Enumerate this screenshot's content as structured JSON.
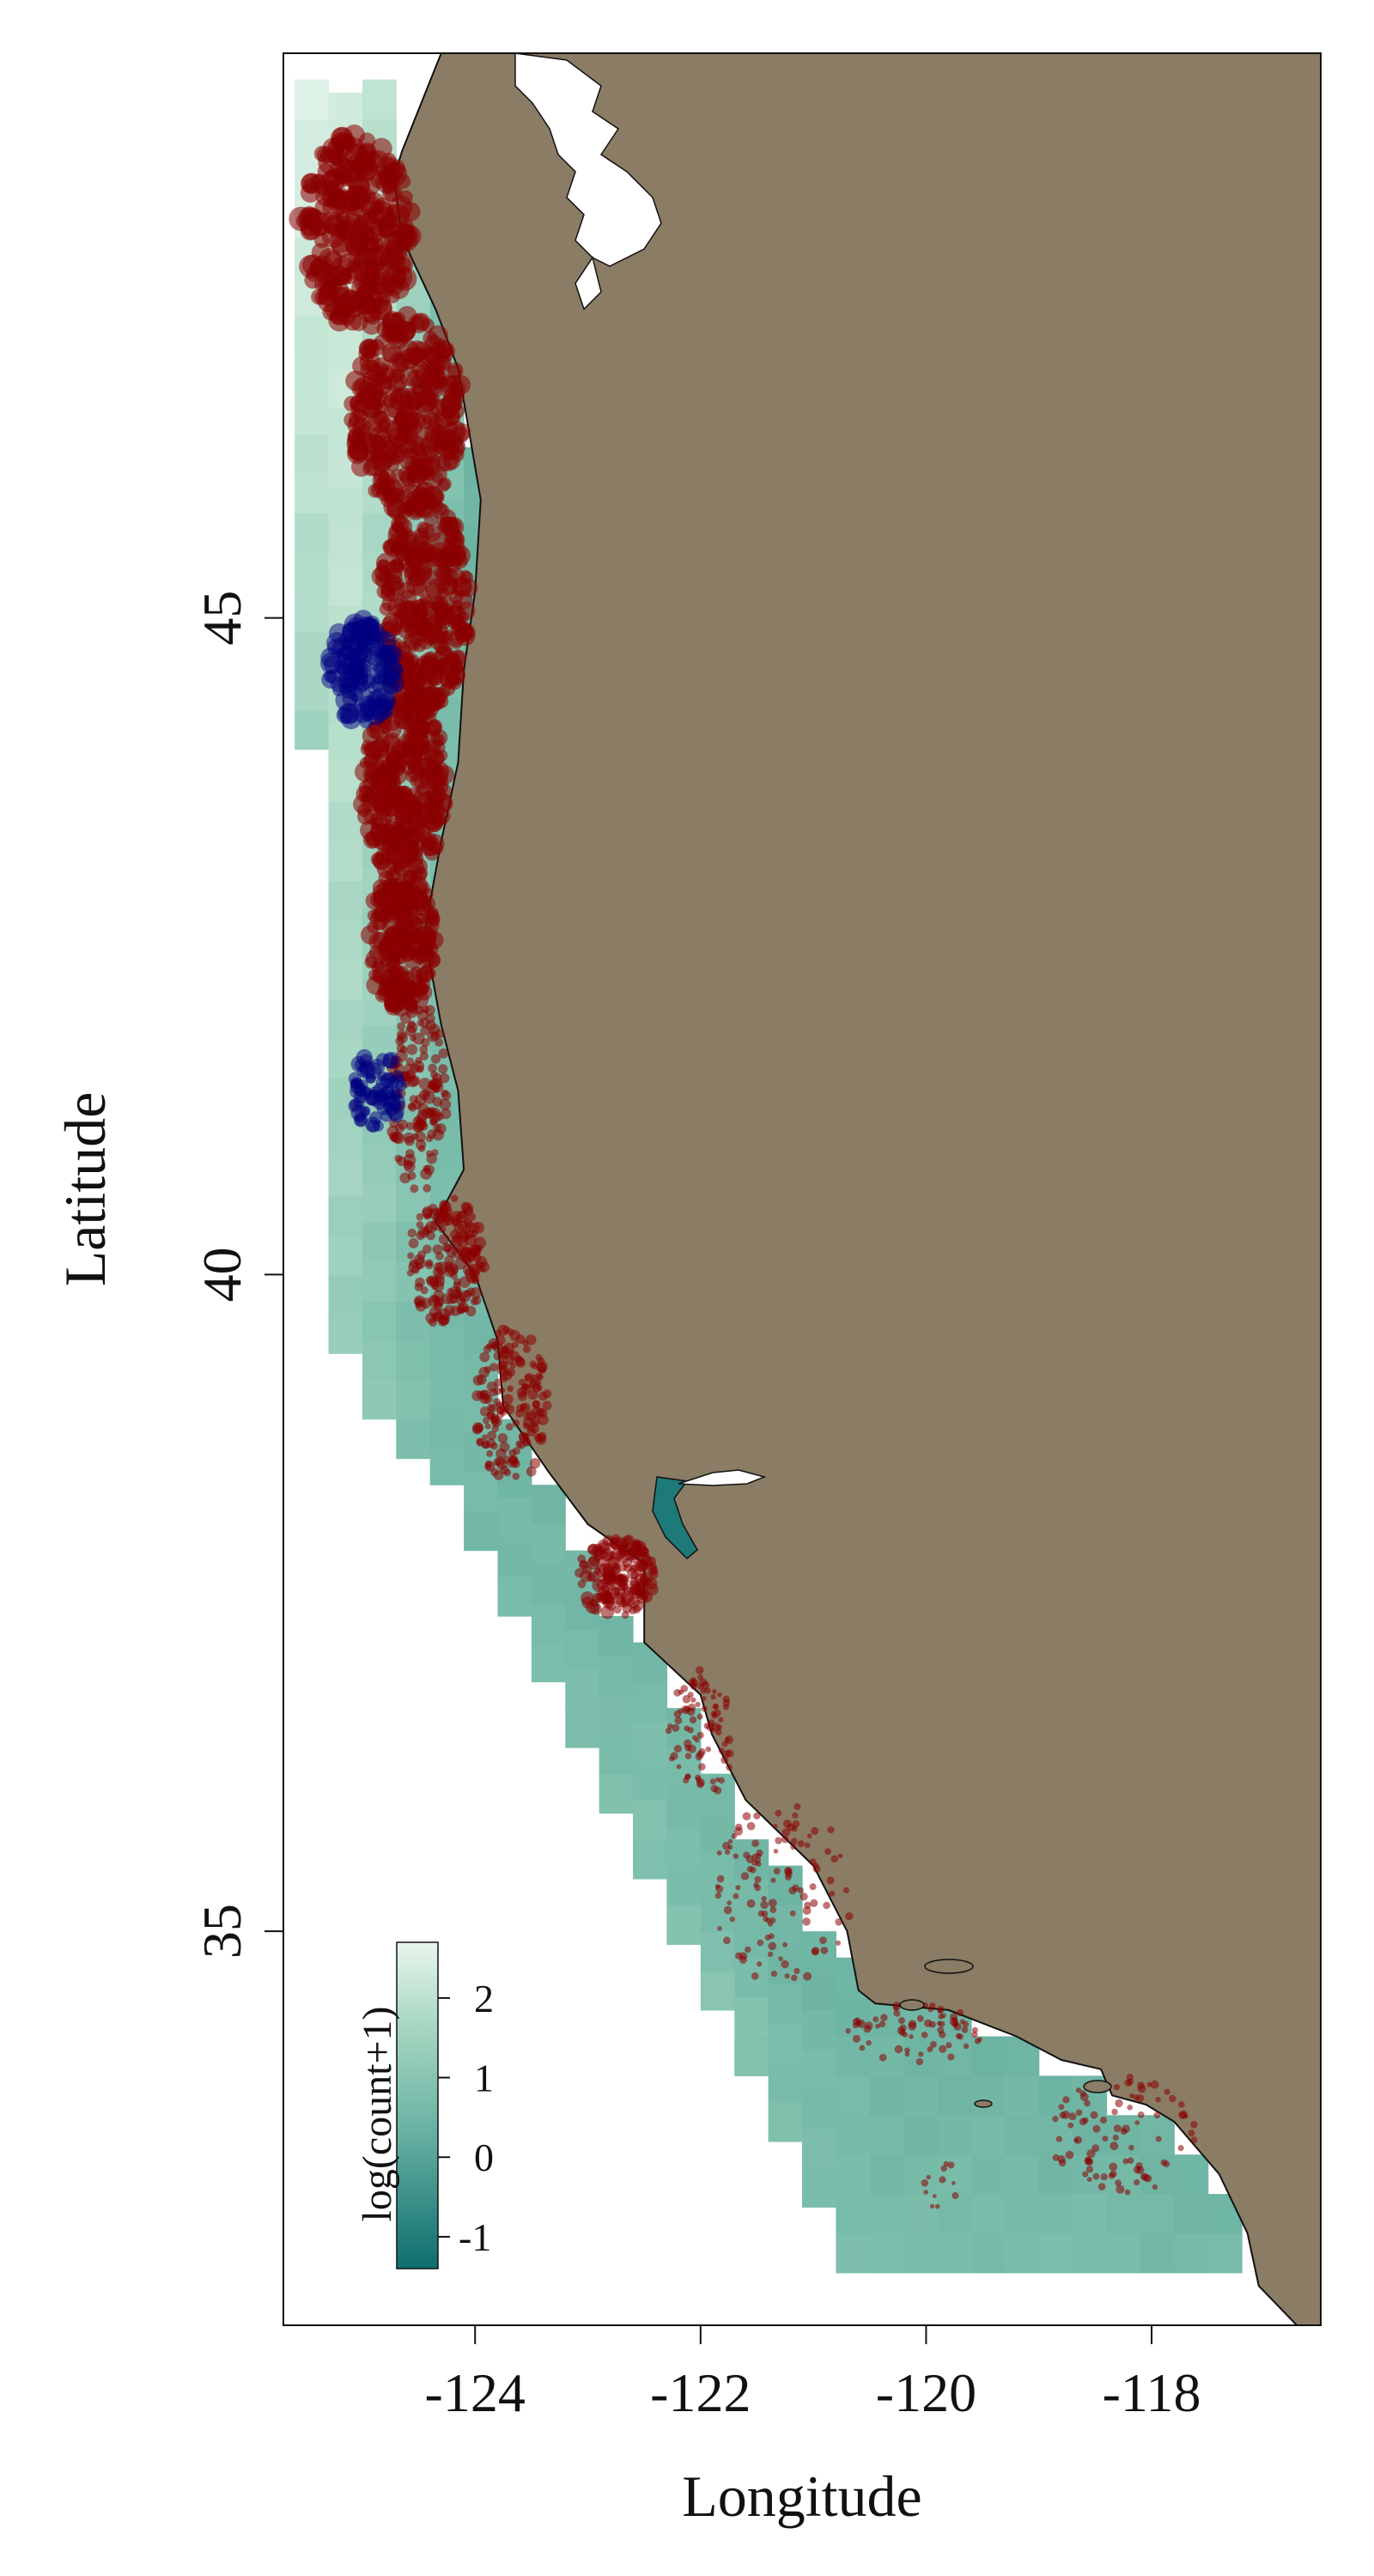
{
  "chart_data": {
    "type": "heatmap",
    "title": "",
    "xlabel": "Longitude",
    "ylabel": "Latitude",
    "xlim": [
      -125.7,
      -116.5
    ],
    "ylim": [
      32.0,
      49.3
    ],
    "x_ticks": [
      {
        "value": -124,
        "label": "-124"
      },
      {
        "value": -122,
        "label": "-122"
      },
      {
        "value": -120,
        "label": "-120"
      },
      {
        "value": -118,
        "label": "-118"
      }
    ],
    "y_ticks": [
      {
        "value": 45,
        "label": "45"
      },
      {
        "value": 40,
        "label": "40"
      },
      {
        "value": 35,
        "label": "35"
      }
    ],
    "legend": {
      "title": "log(count+1)",
      "range": [
        -1.4,
        2.7
      ],
      "ticks": [
        {
          "value": 2,
          "label": "2"
        },
        {
          "value": 1,
          "label": "1"
        },
        {
          "value": 0,
          "label": "0"
        },
        {
          "value": -1,
          "label": "-1"
        }
      ],
      "placement": "bottom-left"
    },
    "colors": {
      "land": "#8a7c65",
      "water": "#ffffff",
      "ramp_low": "#0d6e6e",
      "ramp_mid": "#7dbfac",
      "ramp_high": "#e8f5ec",
      "red_points": "#8b0000",
      "blue_points": "#00007f"
    },
    "grid_step_deg": 0.3,
    "columns": [
      {
        "lon": -125.45,
        "lat_min": 44.0,
        "lat_max": 49.1,
        "start": 1.6,
        "end": 2.5
      },
      {
        "lon": -125.15,
        "lat_min": 39.4,
        "lat_max": 49.1,
        "start": 1.4,
        "end": 2.4
      },
      {
        "lon": -124.85,
        "lat_min": 38.9,
        "lat_max": 49.1,
        "start": 1.2,
        "end": 2.0
      },
      {
        "lon": -124.55,
        "lat_min": 38.6,
        "lat_max": 48.6,
        "start": 1.0,
        "end": 1.5
      },
      {
        "lon": -124.25,
        "lat_min": 38.4,
        "lat_max": 48.3,
        "start": 0.8,
        "end": 1.1
      },
      {
        "lon": -123.95,
        "lat_min": 37.9,
        "lat_max": 46.3,
        "start": 0.8,
        "end": 0.6
      },
      {
        "lon": -123.65,
        "lat_min": 37.4,
        "lat_max": 39.0,
        "start": 0.9,
        "end": 0.6
      },
      {
        "lon": -123.35,
        "lat_min": 36.9,
        "lat_max": 38.3,
        "start": 0.9,
        "end": 0.7
      },
      {
        "lon": -123.05,
        "lat_min": 36.4,
        "lat_max": 37.9,
        "start": 1.0,
        "end": 0.7
      },
      {
        "lon": -122.75,
        "lat_min": 35.9,
        "lat_max": 37.5,
        "start": 1.0,
        "end": 0.7
      },
      {
        "lon": -122.45,
        "lat_min": 35.4,
        "lat_max": 37.2,
        "start": 1.1,
        "end": 0.8
      },
      {
        "lon": -122.15,
        "lat_min": 34.9,
        "lat_max": 36.8,
        "start": 1.1,
        "end": 0.7
      },
      {
        "lon": -121.85,
        "lat_min": 34.4,
        "lat_max": 36.2,
        "start": 1.1,
        "end": 0.7
      },
      {
        "lon": -121.55,
        "lat_min": 33.9,
        "lat_max": 35.8,
        "start": 1.1,
        "end": 0.7
      },
      {
        "lon": -121.25,
        "lat_min": 33.4,
        "lat_max": 35.4,
        "start": 1.0,
        "end": 0.6
      },
      {
        "lon": -120.95,
        "lat_min": 32.9,
        "lat_max": 35.1,
        "start": 1.0,
        "end": 0.6
      },
      {
        "lon": -120.65,
        "lat_min": 32.4,
        "lat_max": 34.8,
        "start": 1.0,
        "end": 0.6
      },
      {
        "lon": -120.35,
        "lat_min": 32.4,
        "lat_max": 34.6,
        "start": 0.9,
        "end": 0.6
      },
      {
        "lon": -120.05,
        "lat_min": 32.4,
        "lat_max": 34.5,
        "start": 0.9,
        "end": 0.6
      },
      {
        "lon": -119.75,
        "lat_min": 32.4,
        "lat_max": 34.4,
        "start": 0.9,
        "end": 0.6
      },
      {
        "lon": -119.45,
        "lat_min": 32.4,
        "lat_max": 34.3,
        "start": 0.9,
        "end": 0.6
      },
      {
        "lon": -119.15,
        "lat_min": 32.4,
        "lat_max": 34.2,
        "start": 0.9,
        "end": 0.6
      },
      {
        "lon": -118.85,
        "lat_min": 32.4,
        "lat_max": 34.0,
        "start": 0.9,
        "end": 0.6
      },
      {
        "lon": -118.55,
        "lat_min": 32.4,
        "lat_max": 33.9,
        "start": 0.9,
        "end": 0.6
      },
      {
        "lon": -118.25,
        "lat_min": 32.4,
        "lat_max": 33.7,
        "start": 0.9,
        "end": 0.6
      },
      {
        "lon": -117.95,
        "lat_min": 32.4,
        "lat_max": 33.5,
        "start": 0.8,
        "end": 0.6
      },
      {
        "lon": -117.65,
        "lat_min": 32.4,
        "lat_max": 33.2,
        "start": 0.8,
        "end": 0.6
      },
      {
        "lon": -117.35,
        "lat_min": 32.4,
        "lat_max": 32.9,
        "start": 0.8,
        "end": 0.6
      }
    ],
    "white_gaps": [
      {
        "lon": -125.45,
        "lat_min": 43.5,
        "lat_max": 44.0
      },
      {
        "lon": -125.45,
        "lat_min": 41.3,
        "lat_max": 42.7
      },
      {
        "lon": -125.45,
        "lat_min": 40.7,
        "lat_max": 41.3
      }
    ],
    "coastline": [
      [
        -124.3,
        49.3
      ],
      [
        -124.65,
        48.55
      ],
      [
        -124.72,
        48.35
      ],
      [
        -124.65,
        47.9
      ],
      [
        -124.35,
        47.35
      ],
      [
        -124.15,
        46.9
      ],
      [
        -124.05,
        46.4
      ],
      [
        -123.95,
        45.9
      ],
      [
        -124.0,
        45.2
      ],
      [
        -124.1,
        44.6
      ],
      [
        -124.15,
        43.9
      ],
      [
        -124.3,
        43.3
      ],
      [
        -124.45,
        42.6
      ],
      [
        -124.3,
        41.9
      ],
      [
        -124.15,
        41.4
      ],
      [
        -124.1,
        40.8
      ],
      [
        -124.35,
        40.4
      ],
      [
        -124.0,
        40.0
      ],
      [
        -123.8,
        39.5
      ],
      [
        -123.75,
        39.0
      ],
      [
        -123.35,
        38.5
      ],
      [
        -123.0,
        38.1
      ],
      [
        -122.5,
        37.8
      ],
      [
        -122.5,
        37.2
      ],
      [
        -122.0,
        36.8
      ],
      [
        -121.9,
        36.5
      ],
      [
        -121.6,
        36.0
      ],
      [
        -121.0,
        35.5
      ],
      [
        -120.7,
        35.0
      ],
      [
        -120.6,
        34.55
      ],
      [
        -120.45,
        34.45
      ],
      [
        -119.8,
        34.4
      ],
      [
        -119.2,
        34.2
      ],
      [
        -118.8,
        34.02
      ],
      [
        -118.45,
        33.95
      ],
      [
        -118.35,
        33.75
      ],
      [
        -118.05,
        33.68
      ],
      [
        -117.8,
        33.55
      ],
      [
        -117.4,
        33.15
      ],
      [
        -117.15,
        32.7
      ],
      [
        -117.05,
        32.3
      ],
      [
        -116.6,
        31.9
      ]
    ],
    "point_clusters": [
      {
        "series": "red",
        "lat_min": 47.2,
        "lat_max": 48.7,
        "lon_min": -125.55,
        "lon_max": -124.55,
        "count": 280,
        "r": 0.1
      },
      {
        "series": "red",
        "lat_min": 45.8,
        "lat_max": 47.3,
        "lon_min": -125.1,
        "lon_max": -124.1,
        "count": 330,
        "r": 0.09
      },
      {
        "series": "red",
        "lat_min": 44.3,
        "lat_max": 45.9,
        "lon_min": -124.85,
        "lon_max": -124.05,
        "count": 330,
        "r": 0.085
      },
      {
        "series": "red",
        "lat_min": 43.0,
        "lat_max": 44.4,
        "lon_min": -125.0,
        "lon_max": -124.25,
        "count": 300,
        "r": 0.085
      },
      {
        "series": "red",
        "lat_min": 42.0,
        "lat_max": 43.1,
        "lon_min": -124.95,
        "lon_max": -124.35,
        "count": 240,
        "r": 0.08
      },
      {
        "series": "red",
        "lat_min": 40.6,
        "lat_max": 42.1,
        "lon_min": -124.75,
        "lon_max": -124.25,
        "count": 140,
        "r": 0.05
      },
      {
        "series": "red",
        "lat_min": 39.6,
        "lat_max": 40.6,
        "lon_min": -124.6,
        "lon_max": -123.9,
        "count": 170,
        "r": 0.05
      },
      {
        "series": "red",
        "lat_min": 38.4,
        "lat_max": 39.6,
        "lon_min": -124.0,
        "lon_max": -123.35,
        "count": 170,
        "r": 0.045
      },
      {
        "series": "red",
        "lat_min": 37.4,
        "lat_max": 38.0,
        "lon_min": -123.1,
        "lon_max": -122.4,
        "count": 160,
        "r": 0.055
      },
      {
        "series": "red",
        "lat_min": 36.0,
        "lat_max": 37.0,
        "lon_min": -122.3,
        "lon_max": -121.7,
        "count": 90,
        "r": 0.035
      },
      {
        "series": "red",
        "lat_min": 34.6,
        "lat_max": 36.0,
        "lon_min": -121.9,
        "lon_max": -120.65,
        "count": 120,
        "r": 0.035
      },
      {
        "series": "red",
        "lat_min": 34.0,
        "lat_max": 34.45,
        "lon_min": -120.7,
        "lon_max": -119.5,
        "count": 70,
        "r": 0.035
      },
      {
        "series": "red",
        "lat_min": 33.0,
        "lat_max": 33.9,
        "lon_min": -118.9,
        "lon_max": -117.6,
        "count": 90,
        "r": 0.035
      },
      {
        "series": "red",
        "lat_min": 32.9,
        "lat_max": 33.3,
        "lon_min": -120.1,
        "lon_max": -119.7,
        "count": 12,
        "r": 0.03
      },
      {
        "series": "blue",
        "lat_min": 44.2,
        "lat_max": 45.0,
        "lon_min": -125.3,
        "lon_max": -124.7,
        "count": 120,
        "r": 0.09
      },
      {
        "series": "blue",
        "lat_min": 41.1,
        "lat_max": 41.7,
        "lon_min": -125.1,
        "lon_max": -124.65,
        "count": 70,
        "r": 0.07
      }
    ]
  }
}
